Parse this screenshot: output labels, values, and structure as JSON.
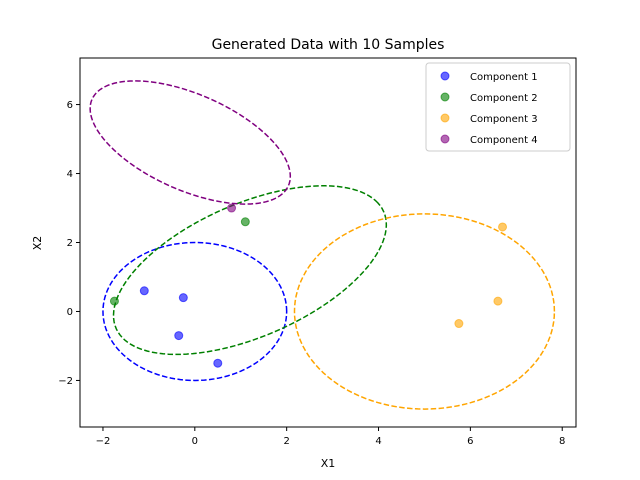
{
  "chart_data": {
    "type": "scatter",
    "title": "Generated Data with 10 Samples",
    "xlabel": "X1",
    "ylabel": "X2",
    "xlim": [
      -2.5,
      8.3
    ],
    "ylim": [
      -3.35,
      7.35
    ],
    "xticks": [
      -2,
      0,
      2,
      4,
      6,
      8
    ],
    "yticks": [
      -2,
      0,
      2,
      4,
      6
    ],
    "grid": false,
    "legend_position": "top-right",
    "series": [
      {
        "name": "Component 1",
        "color": "#0000ff",
        "points": [
          [
            -1.1,
            0.6
          ],
          [
            -0.25,
            0.4
          ],
          [
            -0.35,
            -0.7
          ],
          [
            0.5,
            -1.5
          ]
        ],
        "ellipse": {
          "cx": 0.0,
          "cy": 0.0,
          "rx": 2.0,
          "ry": 2.0,
          "angle_deg": 0
        }
      },
      {
        "name": "Component 2",
        "color": "#008000",
        "points": [
          [
            -1.75,
            0.3
          ],
          [
            1.1,
            2.6
          ]
        ],
        "ellipse": {
          "cx": 1.2,
          "cy": 1.2,
          "rx": 3.4,
          "ry": 1.8,
          "angle_deg": 35
        }
      },
      {
        "name": "Component 3",
        "color": "#ffa500",
        "points": [
          [
            5.75,
            -0.35
          ],
          [
            6.6,
            0.3
          ],
          [
            6.7,
            2.45
          ]
        ],
        "ellipse": {
          "cx": 5.0,
          "cy": 0.0,
          "rx": 2.83,
          "ry": 2.83,
          "angle_deg": 0
        }
      },
      {
        "name": "Component 4",
        "color": "#800080",
        "points": [
          [
            0.8,
            3.0
          ]
        ],
        "ellipse": {
          "cx": -0.1,
          "cy": 4.9,
          "rx": 2.5,
          "ry": 1.3,
          "angle_deg": -35
        }
      }
    ]
  }
}
